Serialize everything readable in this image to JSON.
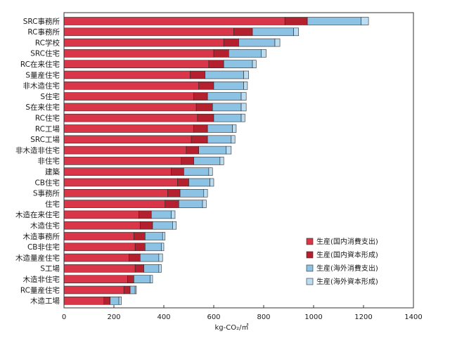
{
  "chart_data": {
    "type": "bar",
    "orientation": "horizontal",
    "stacked": true,
    "categories": [
      "SRC事務所",
      "RC事務所",
      "RC学校",
      "SRC住宅",
      "RC在来住宅",
      "S量産住宅",
      "非木造住宅",
      "S住宅",
      "S在来住宅",
      "RC住宅",
      "RC工場",
      "SRC工場",
      "非木造非住宅",
      "非住宅",
      "建築",
      "CB住宅",
      "S事務所",
      "住宅",
      "木造在来住宅",
      "木造住宅",
      "木造事務所",
      "CB非住宅",
      "木造量産住宅",
      "S工場",
      "木造非住宅",
      "RC量産住宅",
      "木造工場"
    ],
    "series": [
      {
        "name": "生産(国内消費支出)",
        "color": "#d9364a",
        "values": [
          885,
          680,
          640,
          600,
          580,
          505,
          540,
          520,
          530,
          535,
          520,
          510,
          490,
          470,
          430,
          455,
          415,
          405,
          300,
          305,
          280,
          285,
          260,
          285,
          255,
          240,
          160
        ]
      },
      {
        "name": "生産(国内資本形成)",
        "color": "#b4202e",
        "values": [
          90,
          75,
          60,
          60,
          60,
          60,
          60,
          55,
          65,
          65,
          55,
          65,
          50,
          50,
          50,
          45,
          50,
          55,
          50,
          50,
          45,
          40,
          45,
          35,
          25,
          25,
          25
        ]
      },
      {
        "name": "生産(海外消費支出)",
        "color": "#8cc2e4",
        "values": [
          215,
          165,
          145,
          130,
          115,
          155,
          120,
          135,
          115,
          110,
          100,
          95,
          110,
          105,
          100,
          85,
          95,
          95,
          80,
          80,
          70,
          65,
          75,
          60,
          65,
          20,
          35
        ]
      },
      {
        "name": "生産(海外資本形成)",
        "color": "#bcdcf2",
        "values": [
          30,
          20,
          20,
          20,
          15,
          20,
          15,
          20,
          20,
          15,
          15,
          15,
          20,
          15,
          15,
          15,
          15,
          15,
          15,
          15,
          10,
          10,
          15,
          10,
          10,
          5,
          10
        ]
      }
    ],
    "xlabel": "kg-CO₂/㎡",
    "xlim": [
      0,
      1400
    ],
    "xticks": [
      0,
      200,
      400,
      600,
      800,
      1000,
      1200,
      1400
    ],
    "grid": false,
    "legend_position": "bottom-right"
  }
}
